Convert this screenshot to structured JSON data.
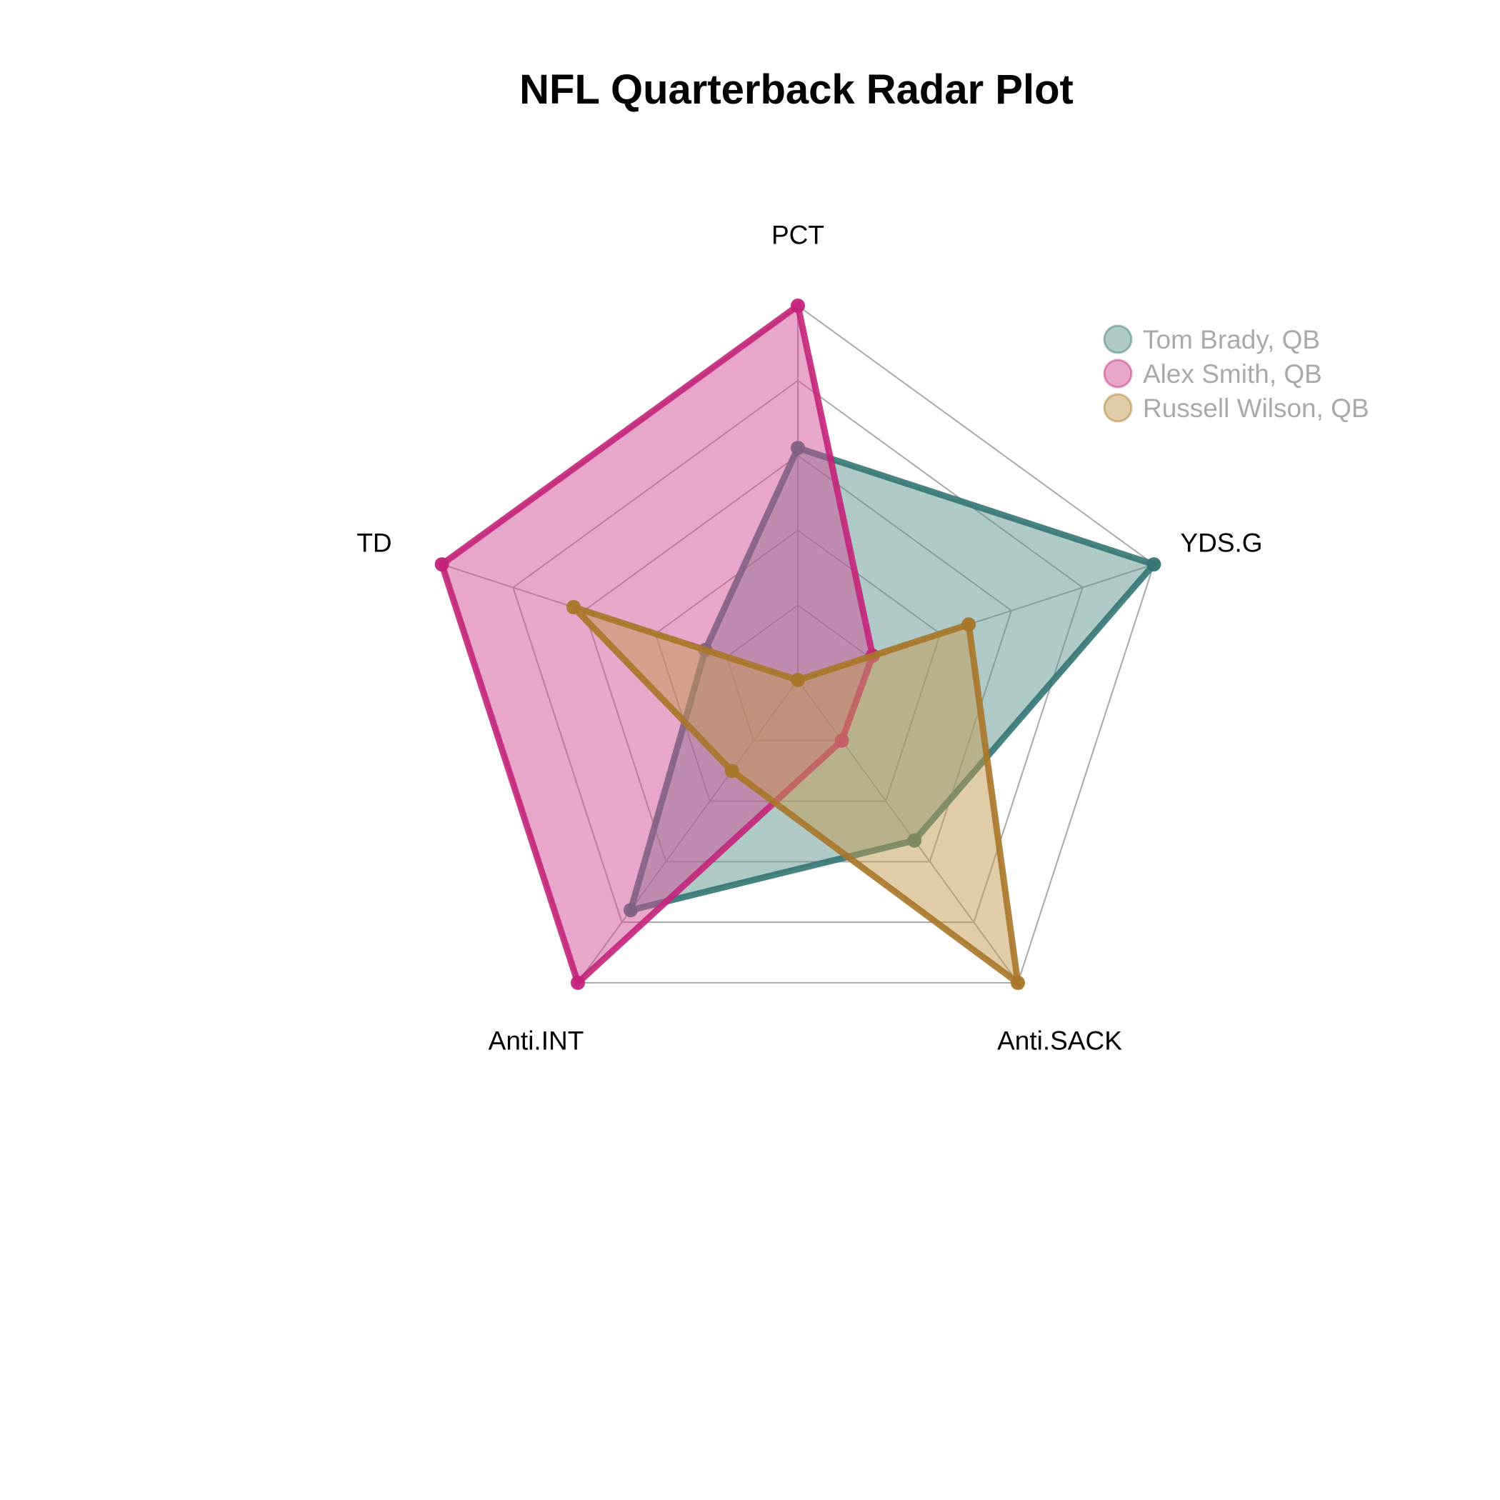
{
  "chart_data": {
    "type": "radar",
    "title": "NFL Quarterback Radar Plot",
    "axes": [
      "PCT",
      "YDS.G",
      "Anti.SACK",
      "Anti.INT",
      "TD"
    ],
    "range": [
      0,
      1
    ],
    "grid_levels": 5,
    "grid": true,
    "legend_position": "top-right",
    "series": [
      {
        "name": "Tom Brady, QB",
        "values": [
          0.62,
          1.0,
          0.53,
          0.76,
          0.26
        ],
        "line_color": "#337573",
        "fill_color": "#5f9390"
      },
      {
        "name": "Alex Smith, QB",
        "values": [
          1.0,
          0.21,
          0.2,
          1.0,
          1.0
        ],
        "line_color": "#c4237a",
        "fill_color": "#cf4d96"
      },
      {
        "name": "Russell Wilson, QB",
        "values": [
          0.0,
          0.48,
          1.0,
          0.3,
          0.63
        ],
        "line_color": "#a87628",
        "fill_color": "#c29a4f"
      }
    ]
  }
}
